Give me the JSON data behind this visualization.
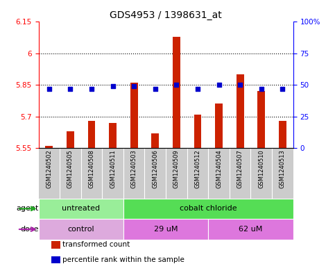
{
  "title": "GDS4953 / 1398631_at",
  "samples": [
    "GSM1240502",
    "GSM1240505",
    "GSM1240508",
    "GSM1240511",
    "GSM1240503",
    "GSM1240506",
    "GSM1240509",
    "GSM1240512",
    "GSM1240504",
    "GSM1240507",
    "GSM1240510",
    "GSM1240513"
  ],
  "transformed_count": [
    5.56,
    5.63,
    5.68,
    5.67,
    5.86,
    5.62,
    6.08,
    5.71,
    5.76,
    5.9,
    5.82,
    5.68
  ],
  "percentile_rank": [
    47,
    47,
    47,
    49,
    49,
    47,
    50,
    47,
    50,
    50,
    47,
    47
  ],
  "ylim_left": [
    5.55,
    6.15
  ],
  "ylim_right": [
    0,
    100
  ],
  "yticks_left": [
    5.55,
    5.7,
    5.85,
    6.0,
    6.15
  ],
  "yticks_right": [
    0,
    25,
    50,
    75,
    100
  ],
  "ytick_labels_left": [
    "5.55",
    "5.7",
    "5.85",
    "6",
    "6.15"
  ],
  "ytick_labels_right": [
    "0",
    "25",
    "50",
    "75",
    "100%"
  ],
  "hlines": [
    5.7,
    5.85,
    6.0
  ],
  "bar_color": "#cc2200",
  "dot_color": "#0000cc",
  "bar_bottom": 5.55,
  "agent_groups": [
    {
      "label": "untreated",
      "start": 0,
      "end": 4,
      "color": "#99ee99"
    },
    {
      "label": "cobalt chloride",
      "start": 4,
      "end": 12,
      "color": "#55dd55"
    }
  ],
  "dose_groups": [
    {
      "label": "control",
      "start": 0,
      "end": 4,
      "color": "#ddaadd"
    },
    {
      "label": "29 uM",
      "start": 4,
      "end": 8,
      "color": "#dd77dd"
    },
    {
      "label": "62 uM",
      "start": 8,
      "end": 12,
      "color": "#dd77dd"
    }
  ],
  "legend_items": [
    {
      "label": "transformed count",
      "color": "#cc2200"
    },
    {
      "label": "percentile rank within the sample",
      "color": "#0000cc"
    }
  ],
  "title_fontsize": 10,
  "tick_fontsize": 7.5,
  "sample_label_fontsize": 6,
  "legend_fontsize": 7.5,
  "annotation_fontsize": 8,
  "bg_color": "#ffffff",
  "sample_bg_color": "#cccccc",
  "arrow_color_agent": "#22aa22",
  "arrow_color_dose": "#aa22aa"
}
